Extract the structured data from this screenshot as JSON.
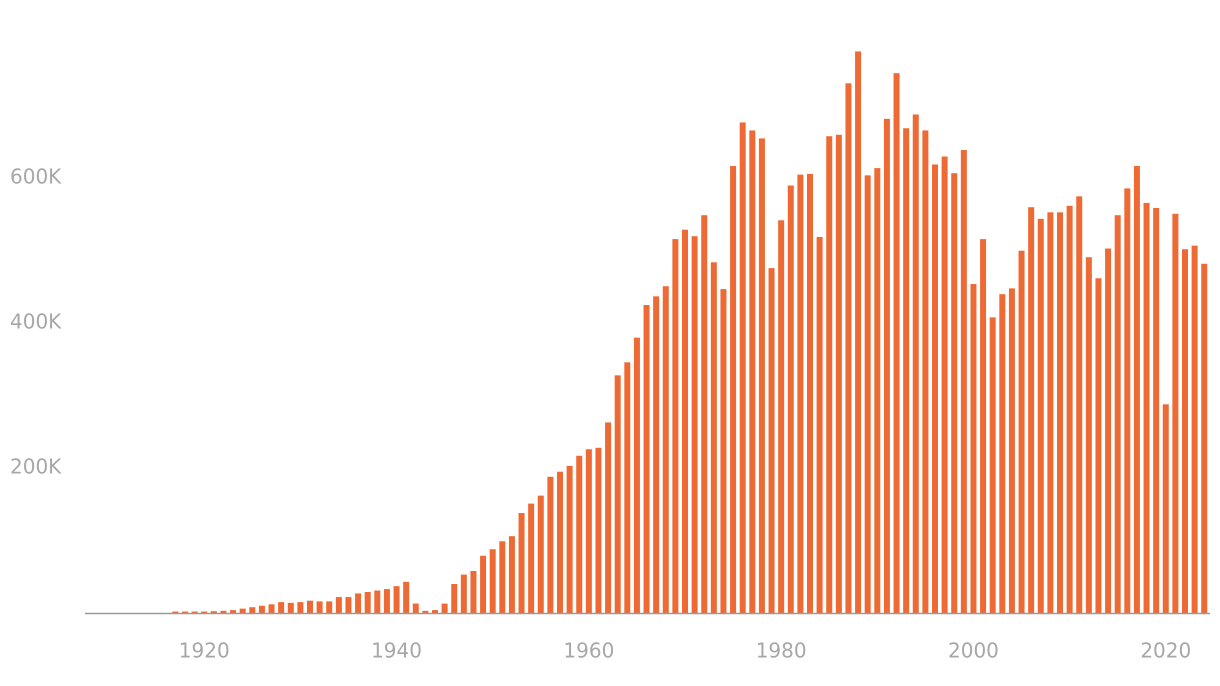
{
  "chart_data": {
    "type": "bar",
    "color": "#ee6a35",
    "grid": false,
    "x": [
      1917,
      1918,
      1919,
      1920,
      1921,
      1922,
      1923,
      1924,
      1925,
      1926,
      1927,
      1928,
      1929,
      1930,
      1931,
      1932,
      1933,
      1934,
      1935,
      1936,
      1937,
      1938,
      1939,
      1940,
      1941,
      1942,
      1943,
      1944,
      1945,
      1946,
      1947,
      1948,
      1949,
      1950,
      1951,
      1952,
      1953,
      1954,
      1955,
      1956,
      1957,
      1958,
      1959,
      1960,
      1961,
      1962,
      1963,
      1964,
      1965,
      1966,
      1967,
      1968,
      1969,
      1970,
      1971,
      1972,
      1973,
      1974,
      1975,
      1976,
      1977,
      1978,
      1979,
      1980,
      1981,
      1982,
      1983,
      1984,
      1985,
      1986,
      1987,
      1988,
      1989,
      1990,
      1991,
      1992,
      1993,
      1994,
      1995,
      1996,
      1997,
      1998,
      1999,
      2000,
      2001,
      2002,
      2003,
      2004,
      2005,
      2006,
      2007,
      2008,
      2009,
      2010,
      2011,
      2012,
      2013,
      2014,
      2015,
      2016,
      2017,
      2018,
      2019,
      2020,
      2021,
      2022,
      2023,
      2024
    ],
    "values": [
      2000,
      2000,
      2000,
      2000,
      2500,
      3000,
      4000,
      6000,
      8000,
      10000,
      12000,
      15000,
      14000,
      15000,
      17000,
      16000,
      16000,
      22000,
      22000,
      27000,
      29000,
      31000,
      33000,
      37000,
      43000,
      13000,
      3000,
      4000,
      13000,
      40000,
      53000,
      58000,
      79000,
      88000,
      99000,
      106000,
      138000,
      151000,
      162000,
      188000,
      195000,
      203000,
      217000,
      226000,
      228000,
      263000,
      328000,
      346000,
      380000,
      425000,
      437000,
      451000,
      516000,
      529000,
      520000,
      549000,
      484000,
      447000,
      617000,
      677000,
      666000,
      655000,
      476000,
      542000,
      590000,
      605000,
      606000,
      519000,
      658000,
      660000,
      731000,
      775000,
      604000,
      614000,
      682000,
      745000,
      669000,
      688000,
      666000,
      619000,
      630000,
      607000,
      639000,
      454000,
      516000,
      408000,
      440000,
      448000,
      500000,
      560000,
      544000,
      553000,
      553000,
      562000,
      575000,
      491000,
      462000,
      503000,
      549000,
      586000,
      617000,
      566000,
      559000,
      288000,
      551000,
      502000,
      507000,
      482000
    ],
    "xlim": [
      1907.6,
      2024.6
    ],
    "xticks": [
      1920,
      1940,
      1960,
      1980,
      2000,
      2020
    ],
    "ylim": [
      0,
      846000
    ],
    "yticks": [
      {
        "value": 200000,
        "label": "200K"
      },
      {
        "value": 400000,
        "label": "400K"
      },
      {
        "value": 600000,
        "label": "600K"
      }
    ]
  }
}
